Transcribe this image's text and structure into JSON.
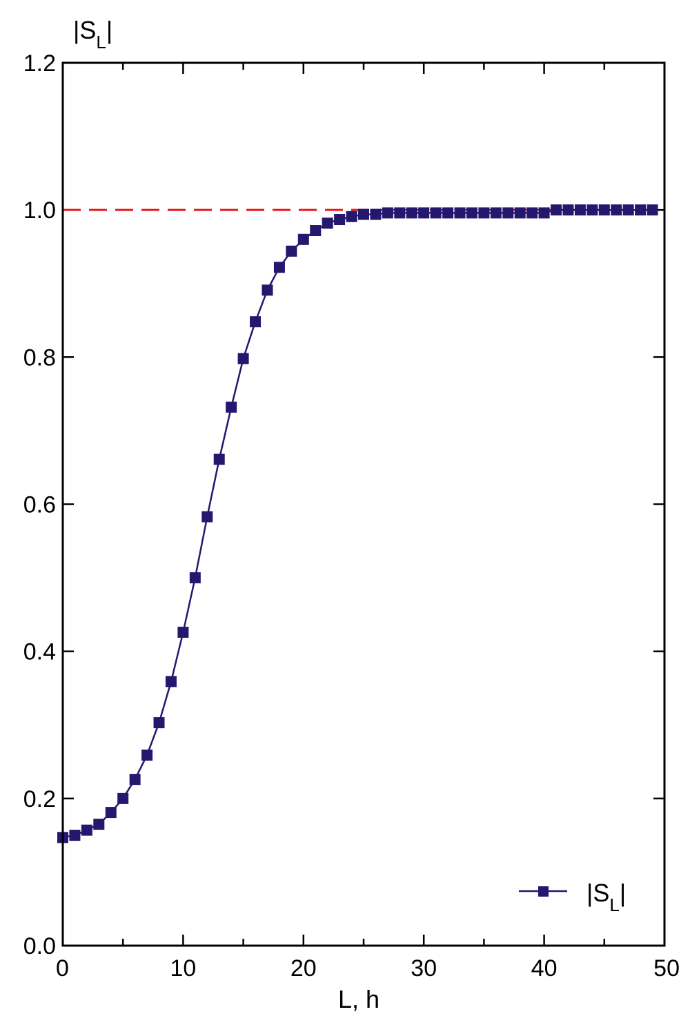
{
  "chart_data": {
    "type": "line",
    "ylabel_main": "|S",
    "ylabel_sub": "L",
    "ylabel_end": "|",
    "xlabel": "L, h",
    "xlim": [
      0,
      50
    ],
    "ylim": [
      0.0,
      1.2
    ],
    "x_ticks": [
      0,
      10,
      20,
      30,
      40,
      50
    ],
    "x_tick_labels": [
      "0",
      "10",
      "20",
      "30",
      "40",
      "50"
    ],
    "x_minor_ticks": [
      5,
      15,
      25,
      35,
      45
    ],
    "y_ticks": [
      0.0,
      0.2,
      0.4,
      0.6,
      0.8,
      1.0,
      1.2
    ],
    "y_tick_labels": [
      "0.0",
      "0.2",
      "0.4",
      "0.6",
      "0.8",
      "1.0",
      "1.2"
    ],
    "grid": false,
    "legend_position": "bottom-right",
    "reference_line": {
      "y": 1.0,
      "style": "dashed",
      "color": "#e8181e"
    },
    "series": [
      {
        "name_main": "|S",
        "name_sub": "L",
        "name_end": "|",
        "color": "#23186e",
        "marker": "square",
        "x": [
          0,
          1,
          2,
          3,
          4,
          5,
          6,
          7,
          8,
          9,
          10,
          11,
          12,
          13,
          14,
          15,
          16,
          17,
          18,
          19,
          20,
          21,
          22,
          23,
          24,
          25,
          26,
          27,
          28,
          29,
          30,
          31,
          32,
          33,
          34,
          35,
          36,
          37,
          38,
          39,
          40,
          41,
          42,
          43,
          44,
          45,
          46,
          47,
          48,
          49
        ],
        "y": [
          0.147,
          0.15,
          0.157,
          0.165,
          0.181,
          0.2,
          0.226,
          0.259,
          0.303,
          0.359,
          0.426,
          0.5,
          0.583,
          0.661,
          0.732,
          0.798,
          0.848,
          0.891,
          0.922,
          0.944,
          0.96,
          0.972,
          0.982,
          0.987,
          0.991,
          0.994,
          0.994,
          0.996,
          0.996,
          0.996,
          0.996,
          0.996,
          0.996,
          0.996,
          0.996,
          0.996,
          0.996,
          0.996,
          0.996,
          0.996,
          0.996,
          1.0,
          1.0,
          1.0,
          1.0,
          1.0,
          1.0,
          1.0,
          1.0,
          1.0
        ]
      }
    ]
  }
}
